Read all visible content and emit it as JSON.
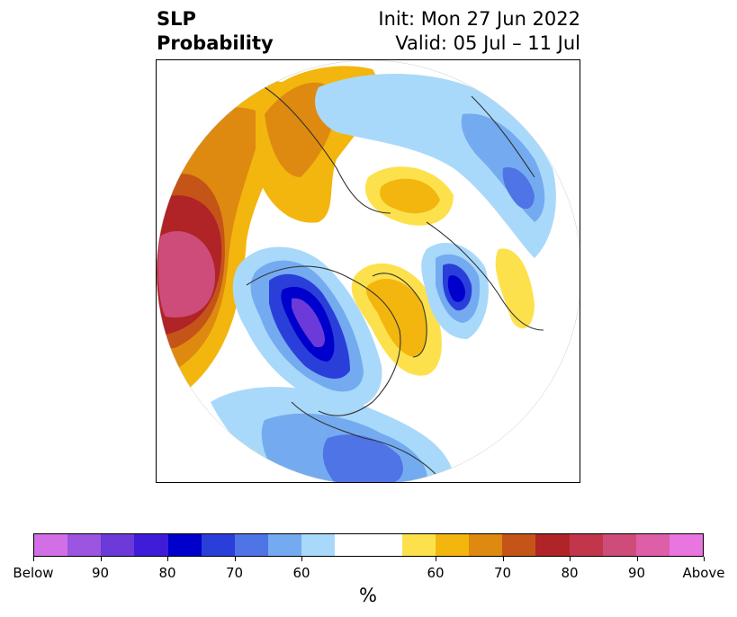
{
  "title": {
    "left_line1": "SLP",
    "left_line2": "Probability",
    "right_line1": "Init: Mon 27 Jun 2022",
    "right_line2": "Valid: 05 Jul – 11 Jul"
  },
  "map": {
    "projection": "north-polar-stereographic",
    "contours": [
      {
        "category": "above",
        "level": "90-100",
        "region": "north-pacific"
      },
      {
        "category": "above",
        "level": "70-80",
        "region": "bering-aleutians"
      },
      {
        "category": "above",
        "level": "60-70",
        "region": "eurasia-north"
      },
      {
        "category": "above",
        "level": "60-70",
        "region": "central-asia"
      },
      {
        "category": "above",
        "level": "60-70",
        "region": "greenland-canada"
      },
      {
        "category": "below",
        "level": "90-100",
        "region": "western-canada"
      },
      {
        "category": "below",
        "level": "80-90",
        "region": "north-atlantic"
      },
      {
        "category": "below",
        "level": "60-70",
        "region": "eastern-usa"
      },
      {
        "category": "below",
        "level": "60-70",
        "region": "scandinavia-europe"
      }
    ]
  },
  "colorbar": {
    "colors": [
      "#d36fe6",
      "#9b55e0",
      "#6b3ad8",
      "#3f1cd8",
      "#0000cc",
      "#2a3fd9",
      "#4f74e6",
      "#74abf0",
      "#a9d9fa",
      "#ffffff",
      "#ffffff",
      "#fde14c",
      "#f3b60e",
      "#de8a10",
      "#c55418",
      "#b02326",
      "#c1364b",
      "#cd4c7a",
      "#dd5fa8",
      "#e876de"
    ],
    "tick_labels": [
      "Below",
      "90",
      "80",
      "70",
      "60",
      "60",
      "70",
      "80",
      "90",
      "Above"
    ],
    "unit": "%"
  }
}
